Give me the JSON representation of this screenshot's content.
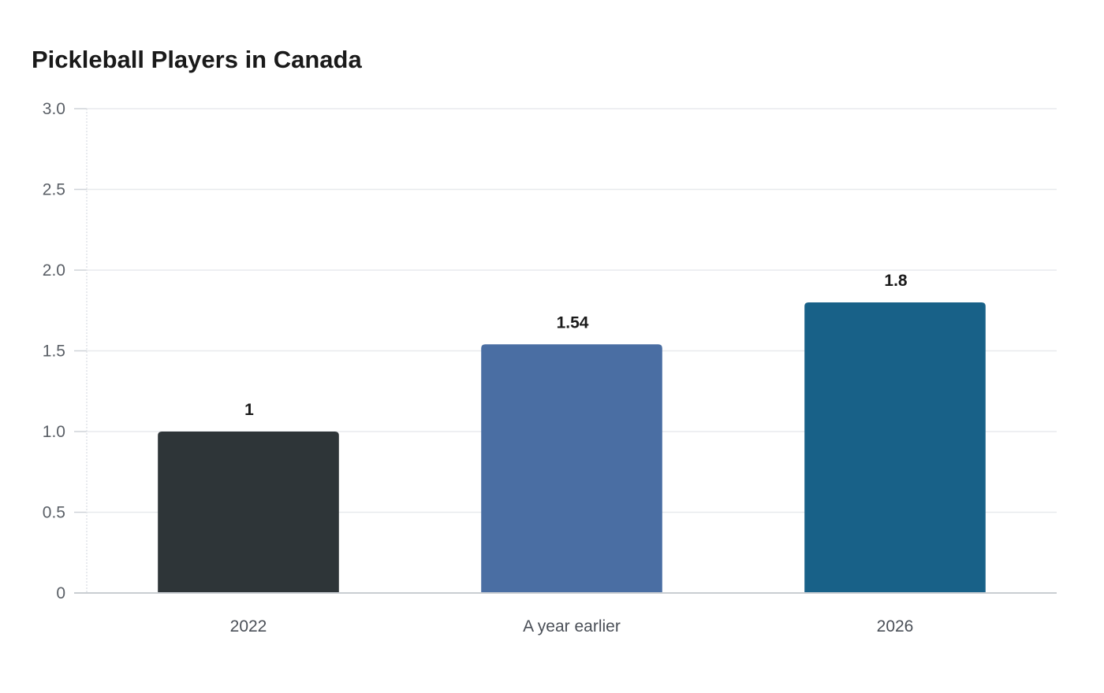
{
  "chart_data": {
    "type": "bar",
    "title": "Pickleball Players in Canada",
    "xlabel": "",
    "ylabel": "",
    "categories": [
      "2022",
      "A year earlier",
      "2026"
    ],
    "values": [
      1,
      1.54,
      1.8
    ],
    "value_labels": [
      "1",
      "1.54",
      "1.8"
    ],
    "colors": [
      "#2e3538",
      "#4a6ea3",
      "#186188"
    ],
    "ylim": [
      0,
      3.0
    ],
    "yticks": [
      {
        "value": 0,
        "label": "0"
      },
      {
        "value": 0.5,
        "label": "0.5"
      },
      {
        "value": 1.0,
        "label": "1.0"
      },
      {
        "value": 1.5,
        "label": "1.5"
      },
      {
        "value": 2.0,
        "label": "2.0"
      },
      {
        "value": 2.5,
        "label": "2.5"
      },
      {
        "value": 3.0,
        "label": "3.0"
      }
    ],
    "grid": true,
    "legend": "none"
  }
}
